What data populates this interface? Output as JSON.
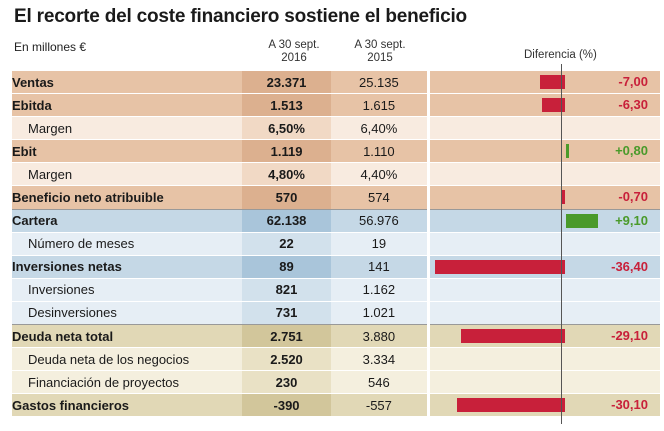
{
  "title": "El recorte del coste financiero sostiene el beneficio",
  "units": "En millones €",
  "columns": {
    "col2016": [
      "A 30 sept.",
      "2016"
    ],
    "col2015": [
      "A 30 sept.",
      "2015"
    ],
    "diff": "Diferencia (%)"
  },
  "colors": {
    "negative_bar": "#c8203a",
    "positive_bar": "#4a9a2a",
    "negative_text": "#c8203a",
    "positive_text": "#4a9a2a"
  },
  "chart_data": {
    "type": "table",
    "title": "El recorte del coste financiero sostiene el beneficio",
    "xlabel": "Diferencia (%)",
    "diff_range": [
      -40,
      10
    ],
    "rows": [
      {
        "label": "Ventas",
        "v2016": "23.371",
        "v2015": "25.135",
        "diff": -7.0,
        "diff_label": "-7,00",
        "main": true,
        "group": "orange"
      },
      {
        "label": "Ebitda",
        "v2016": "1.513",
        "v2015": "1.615",
        "diff": -6.3,
        "diff_label": "-6,30",
        "main": true,
        "group": "orange"
      },
      {
        "label": "Margen",
        "v2016": "6,50%",
        "v2015": "6,40%",
        "diff": null,
        "diff_label": "",
        "main": false,
        "group": "orange"
      },
      {
        "label": "Ebit",
        "v2016": "1.119",
        "v2015": "1.110",
        "diff": 0.8,
        "diff_label": "+0,80",
        "main": true,
        "group": "orange"
      },
      {
        "label": "Margen",
        "v2016": "4,80%",
        "v2015": "4,40%",
        "diff": null,
        "diff_label": "",
        "main": false,
        "group": "orange"
      },
      {
        "label": "Beneficio neto atribuible",
        "v2016": "570",
        "v2015": "574",
        "diff": -0.7,
        "diff_label": "-0,70",
        "main": true,
        "group": "orange",
        "separator": true
      },
      {
        "label": "Cartera",
        "v2016": "62.138",
        "v2015": "56.976",
        "diff": 9.1,
        "diff_label": "+9,10",
        "main": true,
        "group": "blue"
      },
      {
        "label": "Número de meses",
        "v2016": "22",
        "v2015": "19",
        "diff": null,
        "diff_label": "",
        "main": false,
        "group": "blue"
      },
      {
        "label": "Inversiones netas",
        "v2016": "89",
        "v2015": "141",
        "diff": -36.4,
        "diff_label": "-36,40",
        "main": true,
        "group": "blue"
      },
      {
        "label": "Inversiones",
        "v2016": "821",
        "v2015": "1.162",
        "diff": null,
        "diff_label": "",
        "main": false,
        "group": "blue"
      },
      {
        "label": "Desinversiones",
        "v2016": "731",
        "v2015": "1.021",
        "diff": null,
        "diff_label": "",
        "main": false,
        "group": "blue",
        "separator": true
      },
      {
        "label": "Deuda neta total",
        "v2016": "2.751",
        "v2015": "3.880",
        "diff": -29.1,
        "diff_label": "-29,10",
        "main": true,
        "group": "tan"
      },
      {
        "label": "Deuda neta de los negocios",
        "v2016": "2.520",
        "v2015": "3.334",
        "diff": null,
        "diff_label": "",
        "main": false,
        "group": "tan"
      },
      {
        "label": "Financiación de proyectos",
        "v2016": "230",
        "v2015": "546",
        "diff": null,
        "diff_label": "",
        "main": false,
        "group": "tan"
      },
      {
        "label": "Gastos financieros",
        "v2016": "-390",
        "v2015": "-557",
        "diff": -30.1,
        "diff_label": "-30,10",
        "main": true,
        "group": "tan"
      }
    ]
  }
}
